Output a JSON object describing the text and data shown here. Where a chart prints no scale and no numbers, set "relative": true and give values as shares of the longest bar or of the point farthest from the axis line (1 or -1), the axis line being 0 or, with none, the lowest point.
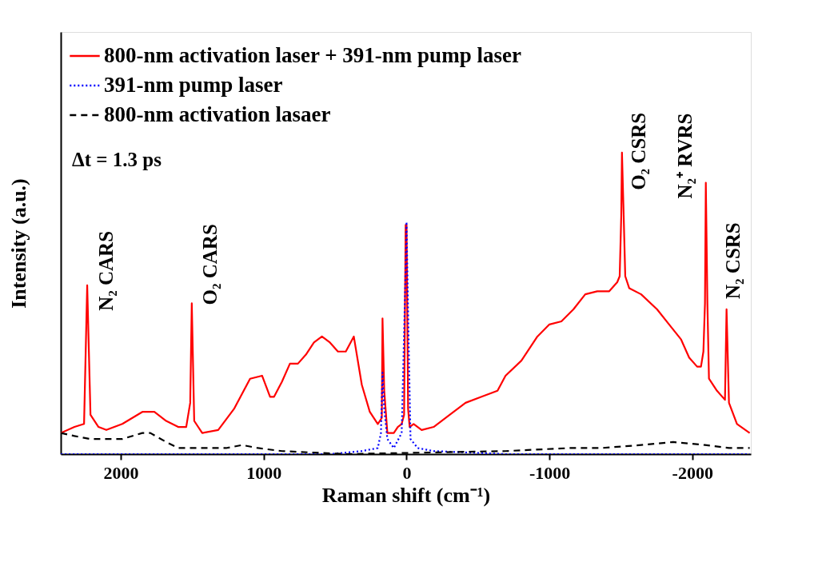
{
  "chart_data": {
    "type": "line",
    "relative": true,
    "xlabel": "Raman shift (cm⁻¹)",
    "ylabel": "Intensity (a.u.)",
    "xlim": [
      2420,
      -2410
    ],
    "xticks": [
      2000,
      1000,
      0,
      -1000,
      -2000
    ],
    "legend": "top left",
    "annotations": [
      "Δt = 1.3 ps",
      {
        "text": "N₂ CARS",
        "x": 2235,
        "y": 0.56
      },
      {
        "text": "O₂ CARS",
        "x": 1503,
        "y": 0.5
      },
      {
        "text": "O₂ CSRS",
        "x": -1508,
        "y": 1.0
      },
      {
        "text": "N₂⁺ RVRS",
        "x": -2095,
        "y": 0.9
      },
      {
        "text": "N₂ CSRS",
        "x": -2240,
        "y": 0.48
      }
    ],
    "series": [
      {
        "name": "800-nm activation laser + 391-nm pump laser",
        "color": "#ff0000",
        "line_style": "solid",
        "x": [
          2419,
          2324,
          2257,
          2235,
          2212,
          2156,
          2101,
          1989,
          1849,
          1821,
          1765,
          1682,
          1598,
          1542,
          1514,
          1503,
          1486,
          1430,
          1318,
          1207,
          1095,
          1011,
          955,
          927,
          872,
          816,
          760,
          704,
          648,
          592,
          536,
          480,
          425,
          369,
          313,
          257,
          201,
          173,
          168,
          156,
          134,
          89,
          61,
          34,
          17,
          6,
          0,
          -11,
          -22,
          -50,
          -106,
          -190,
          -302,
          -413,
          -525,
          -637,
          -693,
          -804,
          -916,
          -1000,
          -1084,
          -1168,
          -1251,
          -1335,
          -1419,
          -1475,
          -1492,
          -1503,
          -1508,
          -1520,
          -1531,
          -1559,
          -1642,
          -1754,
          -1838,
          -1922,
          -1978,
          -2034,
          -2061,
          -2078,
          -2089,
          -2095,
          -2106,
          -2117,
          -2173,
          -2229,
          -2240,
          -2257,
          -2313,
          -2402
        ],
        "values": [
          0.07,
          0.09,
          0.1,
          0.56,
          0.13,
          0.09,
          0.08,
          0.1,
          0.14,
          0.14,
          0.14,
          0.11,
          0.09,
          0.09,
          0.17,
          0.5,
          0.11,
          0.07,
          0.08,
          0.15,
          0.25,
          0.26,
          0.19,
          0.19,
          0.24,
          0.3,
          0.3,
          0.33,
          0.37,
          0.39,
          0.37,
          0.34,
          0.34,
          0.39,
          0.23,
          0.14,
          0.1,
          0.12,
          0.45,
          0.21,
          0.07,
          0.07,
          0.09,
          0.1,
          0.13,
          0.76,
          0.76,
          0.15,
          0.09,
          0.1,
          0.08,
          0.09,
          0.13,
          0.17,
          0.19,
          0.21,
          0.26,
          0.31,
          0.39,
          0.43,
          0.44,
          0.48,
          0.53,
          0.54,
          0.54,
          0.57,
          0.59,
          0.79,
          1.0,
          0.79,
          0.59,
          0.55,
          0.53,
          0.48,
          0.43,
          0.38,
          0.32,
          0.29,
          0.29,
          0.34,
          0.5,
          0.9,
          0.5,
          0.25,
          0.21,
          0.18,
          0.48,
          0.17,
          0.1,
          0.07
        ]
      },
      {
        "name": "391-nm pump laser",
        "color": "#0000ff",
        "line_style": "dotted",
        "x": [
          2419,
          536,
          313,
          201,
          179,
          168,
          156,
          134,
          89,
          34,
          11,
          0,
          -11,
          -28,
          -78,
          -190,
          -693,
          -2402
        ],
        "values": [
          0.0,
          0.0,
          0.01,
          0.02,
          0.07,
          0.27,
          0.15,
          0.05,
          0.02,
          0.07,
          0.52,
          0.77,
          0.47,
          0.05,
          0.02,
          0.01,
          0.0,
          0.0
        ]
      },
      {
        "name": "800-nm activation lasaer",
        "color": "#000000",
        "line_style": "dashed",
        "x": [
          2419,
          2324,
          2212,
          2101,
          1989,
          1849,
          1793,
          1682,
          1598,
          1486,
          1263,
          1151,
          1039,
          872,
          425,
          -693,
          -1140,
          -1363,
          -1642,
          -1866,
          -2089,
          -2257,
          -2402
        ],
        "values": [
          0.07,
          0.06,
          0.05,
          0.05,
          0.05,
          0.07,
          0.07,
          0.04,
          0.02,
          0.02,
          0.02,
          0.03,
          0.02,
          0.01,
          0.0,
          0.01,
          0.02,
          0.02,
          0.03,
          0.04,
          0.03,
          0.02,
          0.02
        ]
      }
    ]
  }
}
